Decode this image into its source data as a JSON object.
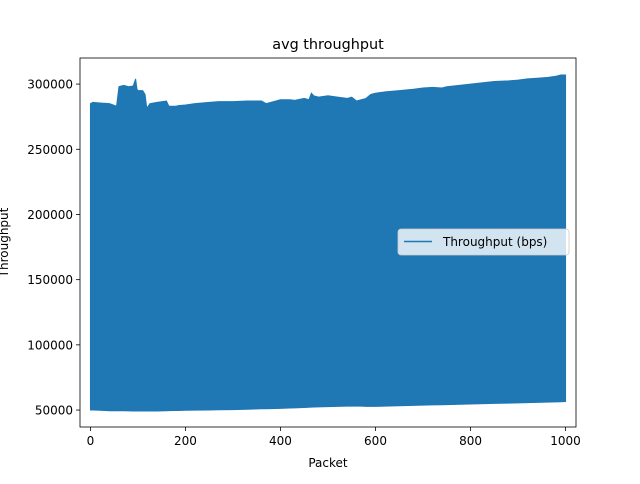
{
  "chart_data": {
    "type": "area",
    "title": "avg throughput",
    "xlabel": "Packet",
    "ylabel": "Throughput",
    "xlim": [
      -22,
      1022
    ],
    "ylim": [
      37000,
      320000
    ],
    "xticks": [
      0,
      200,
      400,
      600,
      800,
      1000
    ],
    "yticks": [
      50000,
      100000,
      150000,
      200000,
      250000,
      300000
    ],
    "grid": false,
    "legend_position": "center-right",
    "series": [
      {
        "name": "Throughput (bps)",
        "color": "#1f77b4",
        "x": [
          0,
          5,
          20,
          40,
          55,
          60,
          70,
          80,
          90,
          95,
          98,
          100,
          110,
          115,
          118,
          120,
          125,
          140,
          160,
          165,
          180,
          185,
          200,
          220,
          250,
          270,
          300,
          330,
          360,
          370,
          400,
          420,
          430,
          450,
          460,
          465,
          470,
          480,
          500,
          520,
          540,
          550,
          560,
          570,
          580,
          590,
          600,
          620,
          650,
          680,
          700,
          720,
          740,
          750,
          800,
          850,
          880,
          900,
          920,
          940,
          960,
          980,
          990,
          1000
        ],
        "upper": [
          285000,
          286000,
          285500,
          285000,
          283000,
          298000,
          299000,
          298000,
          298500,
          304000,
          296000,
          295000,
          295000,
          292000,
          283000,
          282000,
          285000,
          286000,
          287000,
          283000,
          283000,
          283500,
          284000,
          285000,
          286000,
          286500,
          286500,
          287000,
          287000,
          285000,
          288000,
          288000,
          287500,
          289000,
          288000,
          293000,
          291000,
          290000,
          291000,
          290000,
          289000,
          290000,
          287000,
          288000,
          289000,
          292000,
          293000,
          294000,
          295000,
          296000,
          297000,
          297500,
          297000,
          298000,
          300000,
          302000,
          302500,
          303000,
          304000,
          304500,
          305000,
          306000,
          307000,
          307000
        ],
        "lower": [
          50000,
          50000,
          49800,
          49500,
          49500,
          49500,
          49500,
          49400,
          49300,
          49300,
          49300,
          49300,
          49300,
          49300,
          49300,
          49300,
          49300,
          49300,
          49500,
          49600,
          49700,
          49700,
          49800,
          49900,
          50000,
          50200,
          50300,
          50600,
          51000,
          51000,
          51300,
          51600,
          51700,
          52000,
          52100,
          52200,
          52300,
          52400,
          52600,
          52800,
          53000,
          53000,
          53000,
          53000,
          52800,
          52800,
          52800,
          53000,
          53300,
          53600,
          53800,
          54000,
          54100,
          54200,
          54600,
          55100,
          55300,
          55500,
          55700,
          55900,
          56100,
          56300,
          56400,
          56500
        ]
      }
    ]
  }
}
